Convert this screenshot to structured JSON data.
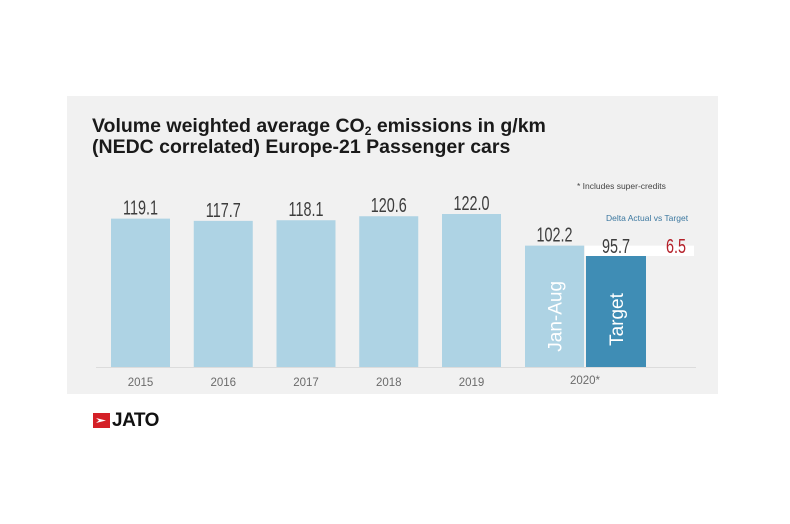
{
  "chart_data": {
    "type": "bar",
    "title_line1_pre": "Volume weighted average CO",
    "title_line1_sub": "2",
    "title_line1_post": " emissions in g/km",
    "title_line2": "(NEDC correlated) Europe-21 Passenger cars",
    "footnote": "* Includes super-credits",
    "categories": [
      "2015",
      "2016",
      "2017",
      "2018",
      "2019",
      "2020*"
    ],
    "series": [
      {
        "name": "Actual",
        "values": [
          119.1,
          117.7,
          118.1,
          120.6,
          122.0,
          102.2
        ],
        "labels": [
          "119.1",
          "117.7",
          "118.1",
          "120.6",
          "122.0",
          "102.2"
        ],
        "color": "#aed3e4"
      }
    ],
    "extra_bars": [
      {
        "category": "2020*",
        "name": "Jan-Aug",
        "value": 102.2,
        "color": "#aed3e4",
        "inner_label": "Jan-Aug"
      },
      {
        "category": "2020*",
        "name": "Target",
        "value": 95.7,
        "label": "95.7",
        "color": "#3f8db5",
        "inner_label": "Target"
      }
    ],
    "delta": {
      "label": "Delta Actual vs Target",
      "value": 6.5,
      "display": "6.5",
      "color": "#b5212a"
    },
    "xlabel": "",
    "ylabel": "",
    "ylim": [
      0,
      122
    ],
    "grid": false,
    "legend": "none",
    "value_label_color": "#3d3d3d",
    "tick_label_color": "#6b6b6b"
  },
  "logo": {
    "text": "JATO",
    "mark_color": "#d42027"
  }
}
